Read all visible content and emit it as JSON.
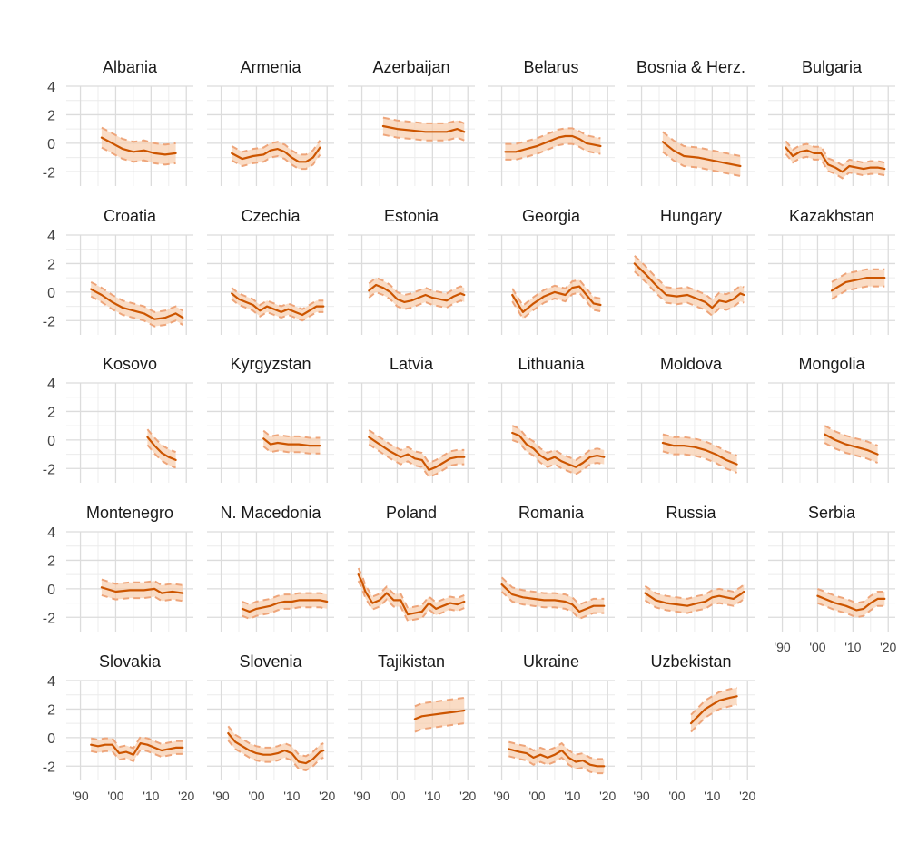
{
  "chart_data": {
    "type": "line",
    "layout": "small-multiples",
    "xlim": [
      1986,
      2022
    ],
    "ylim": [
      -3,
      4
    ],
    "y_ticks": [
      4,
      2,
      0,
      -2
    ],
    "y_tick_labels": [
      "4",
      "2",
      "0",
      "-2"
    ],
    "x_ticks": [
      1990,
      2000,
      2010,
      2020
    ],
    "x_tick_labels": [
      "'90",
      "'00",
      "'10",
      "'20"
    ],
    "colors": {
      "line": "#cc5500",
      "band": "#f7c9a6",
      "dash": "#eea57a",
      "grid_major": "#dcdcdc",
      "grid_minor": "#ececec"
    },
    "panels": [
      {
        "name": "Albania",
        "x": [
          1996,
          1999,
          2002,
          2005,
          2008,
          2011,
          2014,
          2017
        ],
        "y": [
          0.4,
          0.0,
          -0.4,
          -0.6,
          -0.5,
          -0.7,
          -0.8,
          -0.7
        ],
        "band": 0.7
      },
      {
        "name": "Armenia",
        "x": [
          1993,
          1996,
          1999,
          2002,
          2004,
          2006,
          2008,
          2010,
          2012,
          2014,
          2016,
          2018
        ],
        "y": [
          -0.7,
          -1.1,
          -0.9,
          -0.8,
          -0.5,
          -0.4,
          -0.6,
          -1.0,
          -1.3,
          -1.3,
          -1.0,
          -0.3
        ],
        "band": 0.5
      },
      {
        "name": "Azerbaijan",
        "x": [
          1996,
          2000,
          2004,
          2008,
          2011,
          2014,
          2017,
          2019
        ],
        "y": [
          1.2,
          1.0,
          0.9,
          0.8,
          0.8,
          0.8,
          1.0,
          0.8
        ],
        "band": 0.6
      },
      {
        "name": "Belarus",
        "x": [
          1991,
          1994,
          1997,
          2000,
          2003,
          2006,
          2008,
          2010,
          2012,
          2014,
          2016,
          2018
        ],
        "y": [
          -0.6,
          -0.6,
          -0.4,
          -0.2,
          0.1,
          0.4,
          0.5,
          0.5,
          0.3,
          0.0,
          -0.1,
          -0.2
        ],
        "band": 0.55
      },
      {
        "name": "Bosnia & Herz.",
        "x": [
          1996,
          1999,
          2002,
          2006,
          2010,
          2014,
          2018
        ],
        "y": [
          0.1,
          -0.5,
          -0.9,
          -1.0,
          -1.2,
          -1.4,
          -1.6
        ],
        "band": 0.7
      },
      {
        "name": "Bulgaria",
        "x": [
          1991,
          1993,
          1995,
          1997,
          1999,
          2001,
          2003,
          2005,
          2007,
          2009,
          2011,
          2013,
          2015,
          2017,
          2019
        ],
        "y": [
          -0.3,
          -0.9,
          -0.6,
          -0.5,
          -0.7,
          -0.7,
          -1.5,
          -1.7,
          -2.0,
          -1.6,
          -1.7,
          -1.8,
          -1.7,
          -1.7,
          -1.8
        ],
        "band": 0.45
      },
      {
        "name": "Croatia",
        "x": [
          1993,
          1996,
          1999,
          2002,
          2005,
          2008,
          2011,
          2014,
          2017,
          2019
        ],
        "y": [
          0.2,
          -0.2,
          -0.7,
          -1.1,
          -1.3,
          -1.5,
          -1.9,
          -1.8,
          -1.5,
          -1.8
        ],
        "band": 0.5
      },
      {
        "name": "Czechia",
        "x": [
          1993,
          1995,
          1997,
          1999,
          2001,
          2003,
          2005,
          2007,
          2009,
          2011,
          2013,
          2015,
          2017,
          2019
        ],
        "y": [
          -0.1,
          -0.5,
          -0.7,
          -0.9,
          -1.3,
          -1.0,
          -1.2,
          -1.4,
          -1.2,
          -1.4,
          -1.6,
          -1.3,
          -1.0,
          -1.0
        ],
        "band": 0.4
      },
      {
        "name": "Estonia",
        "x": [
          1992,
          1994,
          1996,
          1998,
          2000,
          2002,
          2004,
          2006,
          2008,
          2010,
          2012,
          2014,
          2016,
          2018,
          2019
        ],
        "y": [
          0.1,
          0.5,
          0.3,
          0.0,
          -0.5,
          -0.7,
          -0.6,
          -0.4,
          -0.2,
          -0.4,
          -0.5,
          -0.6,
          -0.3,
          -0.1,
          -0.2
        ],
        "band": 0.5
      },
      {
        "name": "Georgia",
        "x": [
          1993,
          1996,
          1999,
          2002,
          2005,
          2008,
          2010,
          2012,
          2014,
          2016,
          2018
        ],
        "y": [
          -0.2,
          -1.4,
          -0.8,
          -0.3,
          0.0,
          -0.2,
          0.3,
          0.4,
          -0.2,
          -0.8,
          -0.9
        ],
        "band": 0.45
      },
      {
        "name": "Hungary",
        "x": [
          1988,
          1991,
          1994,
          1997,
          2000,
          2003,
          2006,
          2008,
          2010,
          2012,
          2014,
          2016,
          2018,
          2019
        ],
        "y": [
          2.0,
          1.3,
          0.5,
          -0.2,
          -0.3,
          -0.2,
          -0.5,
          -0.7,
          -1.1,
          -0.6,
          -0.7,
          -0.5,
          -0.1,
          -0.2
        ],
        "band": 0.55
      },
      {
        "name": "Kazakhstan",
        "x": [
          2004,
          2006,
          2008,
          2010,
          2012,
          2014,
          2016,
          2019
        ],
        "y": [
          0.1,
          0.4,
          0.7,
          0.8,
          0.9,
          1.0,
          1.0,
          1.0
        ],
        "band": 0.6
      },
      {
        "name": "Kosovo",
        "x": [
          2009,
          2011,
          2013,
          2015,
          2017
        ],
        "y": [
          0.2,
          -0.4,
          -0.9,
          -1.2,
          -1.4
        ],
        "band": 0.55
      },
      {
        "name": "Kyrgyzstan",
        "x": [
          2002,
          2004,
          2006,
          2009,
          2012,
          2015,
          2018
        ],
        "y": [
          0.1,
          -0.3,
          -0.2,
          -0.3,
          -0.3,
          -0.4,
          -0.4
        ],
        "band": 0.55
      },
      {
        "name": "Latvia",
        "x": [
          1992,
          1995,
          1998,
          2001,
          2003,
          2005,
          2007,
          2009,
          2011,
          2013,
          2015,
          2017,
          2019
        ],
        "y": [
          0.2,
          -0.3,
          -0.8,
          -1.2,
          -1.0,
          -1.3,
          -1.4,
          -2.1,
          -1.9,
          -1.6,
          -1.3,
          -1.2,
          -1.2
        ],
        "band": 0.5
      },
      {
        "name": "Lithuania",
        "x": [
          1993,
          1995,
          1997,
          1999,
          2001,
          2003,
          2005,
          2007,
          2009,
          2011,
          2013,
          2015,
          2017,
          2019
        ],
        "y": [
          0.5,
          0.3,
          -0.3,
          -0.6,
          -1.1,
          -1.4,
          -1.2,
          -1.5,
          -1.7,
          -1.9,
          -1.6,
          -1.2,
          -1.1,
          -1.2
        ],
        "band": 0.5
      },
      {
        "name": "Moldova",
        "x": [
          1996,
          1999,
          2002,
          2005,
          2008,
          2011,
          2014,
          2017
        ],
        "y": [
          -0.2,
          -0.4,
          -0.4,
          -0.5,
          -0.7,
          -1.0,
          -1.4,
          -1.7
        ],
        "band": 0.6
      },
      {
        "name": "Mongolia",
        "x": [
          2002,
          2005,
          2008,
          2011,
          2014,
          2017
        ],
        "y": [
          0.4,
          0.0,
          -0.3,
          -0.5,
          -0.7,
          -1.0
        ],
        "band": 0.6
      },
      {
        "name": "Montenegro",
        "x": [
          1996,
          2000,
          2004,
          2008,
          2011,
          2013,
          2016,
          2019
        ],
        "y": [
          0.1,
          -0.2,
          -0.1,
          -0.1,
          0.0,
          -0.3,
          -0.2,
          -0.3
        ],
        "band": 0.55
      },
      {
        "name": "N. Macedonia",
        "x": [
          1996,
          1998,
          2000,
          2002,
          2004,
          2006,
          2008,
          2010,
          2012,
          2014,
          2016,
          2018,
          2020
        ],
        "y": [
          -1.4,
          -1.6,
          -1.4,
          -1.3,
          -1.2,
          -1.0,
          -0.9,
          -0.9,
          -0.8,
          -0.8,
          -0.8,
          -0.8,
          -0.9
        ],
        "band": 0.5
      },
      {
        "name": "Poland",
        "x": [
          1989,
          1990,
          1991,
          1993,
          1995,
          1997,
          1999,
          2001,
          2003,
          2005,
          2007,
          2009,
          2011,
          2013,
          2015,
          2017,
          2019
        ],
        "y": [
          1.0,
          0.5,
          -0.2,
          -1.0,
          -0.8,
          -0.3,
          -0.8,
          -0.8,
          -1.8,
          -1.7,
          -1.6,
          -1.0,
          -1.4,
          -1.2,
          -1.0,
          -1.1,
          -0.9
        ],
        "band": 0.45
      },
      {
        "name": "Romania",
        "x": [
          1990,
          1993,
          1996,
          1999,
          2002,
          2005,
          2008,
          2010,
          2012,
          2014,
          2016,
          2018,
          2019
        ],
        "y": [
          0.3,
          -0.4,
          -0.6,
          -0.7,
          -0.8,
          -0.8,
          -0.9,
          -1.1,
          -1.6,
          -1.4,
          -1.2,
          -1.2,
          -1.2
        ],
        "band": 0.5
      },
      {
        "name": "Russia",
        "x": [
          1991,
          1994,
          1997,
          2000,
          2003,
          2006,
          2008,
          2010,
          2012,
          2014,
          2016,
          2018,
          2019
        ],
        "y": [
          -0.3,
          -0.8,
          -1.0,
          -1.1,
          -1.2,
          -1.0,
          -0.9,
          -0.6,
          -0.5,
          -0.6,
          -0.7,
          -0.4,
          -0.2
        ],
        "band": 0.5
      },
      {
        "name": "Serbia",
        "x": [
          2000,
          2002,
          2005,
          2008,
          2011,
          2013,
          2015,
          2017,
          2019
        ],
        "y": [
          -0.5,
          -0.7,
          -1.0,
          -1.2,
          -1.5,
          -1.4,
          -1.0,
          -0.7,
          -0.7
        ],
        "band": 0.5
      },
      {
        "name": "Slovakia",
        "x": [
          1993,
          1995,
          1997,
          1999,
          2001,
          2003,
          2005,
          2007,
          2009,
          2011,
          2013,
          2015,
          2017,
          2019
        ],
        "y": [
          -0.5,
          -0.6,
          -0.5,
          -0.5,
          -1.1,
          -1.0,
          -1.2,
          -0.4,
          -0.5,
          -0.7,
          -0.9,
          -0.8,
          -0.7,
          -0.7
        ],
        "band": 0.45
      },
      {
        "name": "Slovenia",
        "x": [
          1992,
          1994,
          1996,
          1998,
          2000,
          2002,
          2004,
          2006,
          2008,
          2010,
          2012,
          2014,
          2016,
          2018,
          2019
        ],
        "y": [
          0.3,
          -0.3,
          -0.6,
          -0.9,
          -1.1,
          -1.2,
          -1.2,
          -1.1,
          -0.9,
          -1.1,
          -1.7,
          -1.8,
          -1.5,
          -1.0,
          -0.9
        ],
        "band": 0.5
      },
      {
        "name": "Tajikistan",
        "x": [
          2005,
          2007,
          2010,
          2013,
          2016,
          2019
        ],
        "y": [
          1.3,
          1.5,
          1.6,
          1.7,
          1.8,
          1.9
        ],
        "band": 0.9
      },
      {
        "name": "Ukraine",
        "x": [
          1992,
          1995,
          1997,
          1999,
          2001,
          2003,
          2005,
          2007,
          2009,
          2011,
          2013,
          2015,
          2017,
          2019
        ],
        "y": [
          -0.8,
          -1.0,
          -1.1,
          -1.4,
          -1.2,
          -1.4,
          -1.2,
          -0.9,
          -1.4,
          -1.7,
          -1.6,
          -1.9,
          -2.0,
          -2.0
        ],
        "band": 0.5
      },
      {
        "name": "Uzbekistan",
        "x": [
          2004,
          2006,
          2008,
          2010,
          2012,
          2015,
          2017
        ],
        "y": [
          1.0,
          1.5,
          2.0,
          2.3,
          2.6,
          2.8,
          2.9
        ],
        "band": 0.6
      }
    ]
  }
}
